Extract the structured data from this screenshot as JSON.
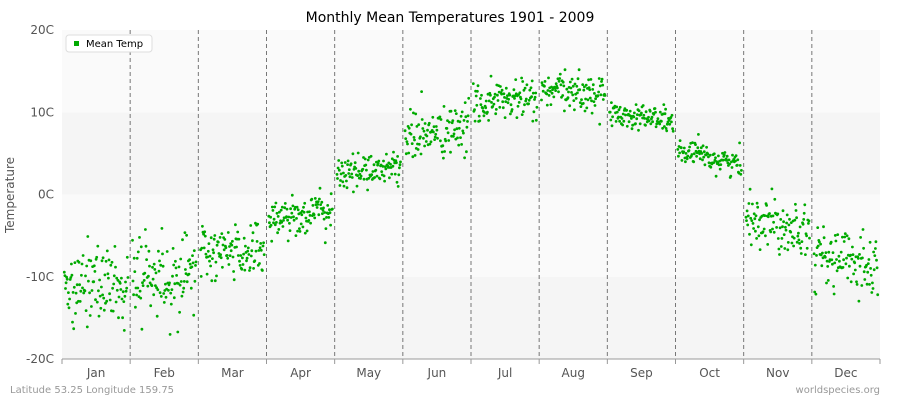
{
  "chart_data": {
    "type": "scatter",
    "title": "Monthly Mean Temperatures 1901 - 2009",
    "xlabel": "",
    "ylabel": "Temperature",
    "categories": [
      "Jan",
      "Feb",
      "Mar",
      "Apr",
      "May",
      "Jun",
      "Jul",
      "Aug",
      "Sep",
      "Oct",
      "Nov",
      "Dec"
    ],
    "ylim": [
      -20,
      20
    ],
    "yticks": [
      -20,
      -10,
      0,
      10,
      20
    ],
    "ytick_labels": [
      "-20C",
      "-10C",
      "0C",
      "10C",
      "20C"
    ],
    "grid": "alternating horizontal bands, dashed vertical month separators",
    "legend_position": "top-left",
    "series": [
      {
        "name": "Mean Temp",
        "color": "#00aa00",
        "years": "1901-2009",
        "monthly_center_c": [
          -11,
          -10,
          -7,
          -2.5,
          3,
          7.5,
          11.5,
          12.5,
          9.5,
          4.5,
          -3.5,
          -8
        ],
        "monthly_spread_c": [
          2.5,
          2.5,
          1.8,
          1.2,
          1.0,
          1.5,
          1.3,
          1.1,
          0.8,
          0.8,
          1.6,
          1.8
        ]
      }
    ]
  },
  "footer": {
    "left": "Latitude 53.25 Longitude 159.75",
    "right": "worldspecies.org"
  }
}
